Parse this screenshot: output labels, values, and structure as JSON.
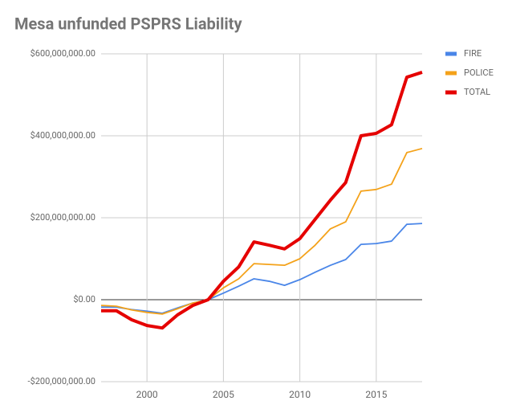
{
  "chart_data": {
    "type": "line",
    "title": "Mesa unfunded PSPRS Liability",
    "x": [
      1997,
      1998,
      1999,
      2000,
      2001,
      2002,
      2003,
      2004,
      2005,
      2006,
      2007,
      2008,
      2009,
      2010,
      2011,
      2012,
      2013,
      2014,
      2015,
      2016,
      2017,
      2018
    ],
    "series": [
      {
        "name": "FIRE",
        "color": "#4a86e8",
        "values": [
          -18000000,
          -18000000,
          -24000000,
          -28000000,
          -33000000,
          -20000000,
          -8000000,
          0,
          16000000,
          33000000,
          51000000,
          45000000,
          35000000,
          49000000,
          67000000,
          84000000,
          98000000,
          135000000,
          137000000,
          143000000,
          184000000,
          186000000
        ]
      },
      {
        "name": "POLICE",
        "color": "#f4a21a",
        "values": [
          -14000000,
          -16000000,
          -25000000,
          -31000000,
          -35000000,
          -22000000,
          -8000000,
          0,
          29000000,
          51000000,
          88000000,
          86000000,
          84000000,
          100000000,
          133000000,
          173000000,
          190000000,
          265000000,
          269000000,
          282000000,
          359000000,
          369000000
        ]
      },
      {
        "name": "TOTAL",
        "color": "#e50000",
        "values": [
          -27000000,
          -27000000,
          -49000000,
          -63000000,
          -69000000,
          -37000000,
          -14000000,
          0,
          45000000,
          80000000,
          141000000,
          133000000,
          124000000,
          149000000,
          196000000,
          243000000,
          286000000,
          400000000,
          406000000,
          427000000,
          543000000,
          555000000
        ]
      }
    ],
    "xlim": [
      1997,
      2018
    ],
    "xticks": [
      2000,
      2005,
      2010,
      2015
    ],
    "ylim": [
      -200000000,
      600000000
    ],
    "yticks": [
      {
        "value": -200000000,
        "label": "-$200,000,000.00"
      },
      {
        "value": 0,
        "label": "$0.00"
      },
      {
        "value": 200000000,
        "label": "$200,000,000.00"
      },
      {
        "value": 400000000,
        "label": "$400,000,000.00"
      },
      {
        "value": 600000000,
        "label": "$600,000,000.00"
      }
    ],
    "grid": true,
    "legend": "right"
  }
}
